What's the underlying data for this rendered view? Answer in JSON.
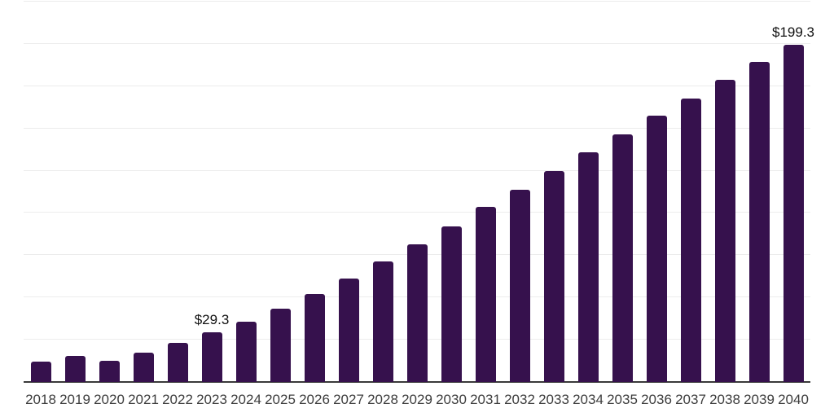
{
  "chart_data": {
    "type": "bar",
    "title": "",
    "categories": [
      "2018",
      "2019",
      "2020",
      "2021",
      "2022",
      "2023",
      "2024",
      "2025",
      "2026",
      "2027",
      "2028",
      "2029",
      "2030",
      "2031",
      "2032",
      "2033",
      "2034",
      "2035",
      "2036",
      "2037",
      "2038",
      "2039",
      "2040"
    ],
    "values": [
      12.0,
      15.6,
      12.4,
      17.2,
      23.1,
      29.3,
      35.7,
      43.4,
      52.2,
      61.1,
      71.3,
      81.4,
      91.9,
      103.4,
      113.5,
      124.8,
      135.7,
      146.4,
      157.5,
      167.6,
      178.7,
      189.3,
      199.3
    ],
    "value_labels": [
      {
        "category": "2023",
        "text": "$29.3"
      },
      {
        "category": "2040",
        "text": "$199.3"
      }
    ],
    "xlabel": "",
    "ylabel": "",
    "ylim": [
      0,
      225
    ],
    "gridline_step": 25,
    "grid": "horizontal gridlines, no y-axis tick labels",
    "legend": "none",
    "colors": {
      "bar": "#36114D",
      "background": "#FFFFFF",
      "gridline": "#ECECEC",
      "axis_line": "#3A3A3A",
      "x_label_text": "#3D3D3D",
      "value_label_text": "#111111"
    }
  }
}
